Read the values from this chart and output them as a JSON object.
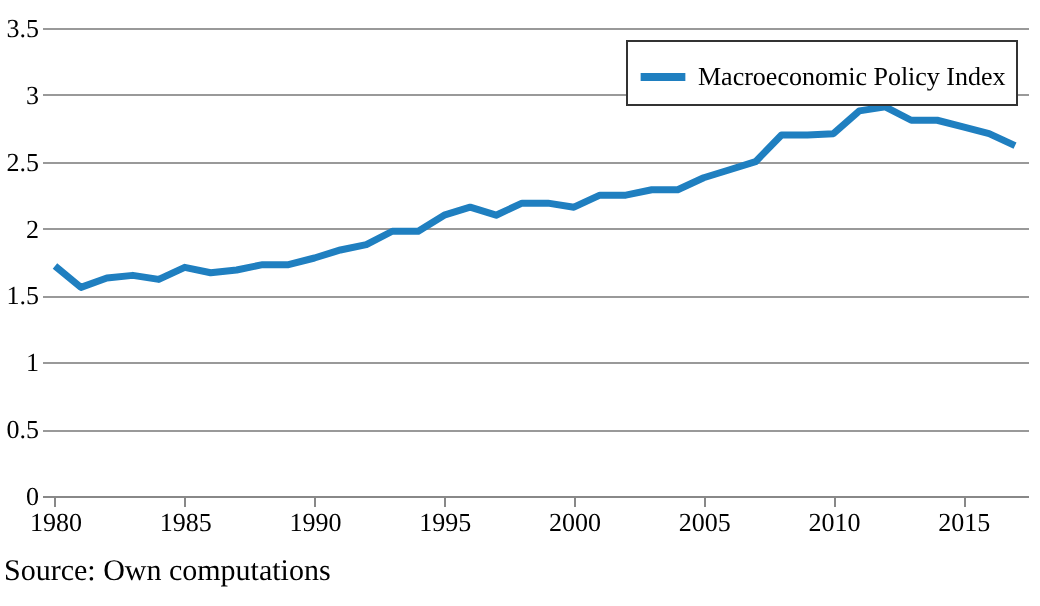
{
  "chart_data": {
    "type": "line",
    "x": [
      1980,
      1981,
      1982,
      1983,
      1984,
      1985,
      1986,
      1987,
      1988,
      1989,
      1990,
      1991,
      1992,
      1993,
      1994,
      1995,
      1996,
      1997,
      1998,
      1999,
      2000,
      2001,
      2002,
      2003,
      2004,
      2005,
      2006,
      2007,
      2008,
      2009,
      2010,
      2011,
      2012,
      2013,
      2014,
      2015,
      2016,
      2017
    ],
    "series": [
      {
        "name": "Macroeconomic Policy Index",
        "color": "#1f7fc0",
        "values": [
          1.72,
          1.56,
          1.63,
          1.65,
          1.62,
          1.71,
          1.67,
          1.69,
          1.73,
          1.73,
          1.78,
          1.84,
          1.88,
          1.98,
          1.98,
          2.1,
          2.16,
          2.1,
          2.19,
          2.19,
          2.16,
          2.25,
          2.25,
          2.29,
          2.29,
          2.38,
          2.44,
          2.5,
          2.7,
          2.7,
          2.71,
          2.88,
          2.91,
          2.81,
          2.81,
          2.76,
          2.71,
          2.62
        ]
      }
    ],
    "xlim": [
      1979.5,
      2017.5
    ],
    "xticks": [
      1980,
      1985,
      1990,
      1995,
      2000,
      2005,
      2010,
      2015
    ],
    "ylim": [
      0,
      3.5
    ],
    "yticks": [
      0,
      0.5,
      1,
      1.5,
      2,
      2.5,
      3,
      3.5
    ],
    "grid": "y",
    "legend": "top right",
    "marker": "none",
    "line_style": "solid",
    "annotations": [
      "Source: Own computations"
    ]
  }
}
